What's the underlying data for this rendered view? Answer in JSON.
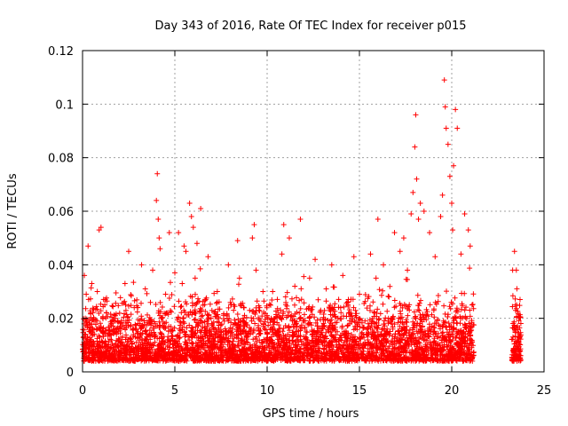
{
  "chart_data": {
    "type": "scatter",
    "title": "Day 343 of 2016, Rate Of TEC Index for receiver p015",
    "xlabel": "GPS time / hours",
    "ylabel": "ROTI / TECUs",
    "xlim": [
      0,
      25
    ],
    "ylim": [
      0,
      0.12
    ],
    "x_ticks": [
      "0",
      "5",
      "10",
      "15",
      "20",
      "25"
    ],
    "y_ticks": [
      "0",
      "0.02",
      "0.04",
      "0.06",
      "0.08",
      "0.1",
      "0.12"
    ],
    "grid": true,
    "marker": "plus",
    "color": "#ff0000",
    "series": [
      {
        "x": [
          0.05,
          0.1,
          0.15,
          0.2,
          0.3,
          0.4,
          0.5,
          0.6,
          0.8,
          0.9,
          1.0,
          1.1,
          1.3,
          1.5,
          1.7,
          2.0,
          2.3,
          2.5,
          2.6,
          2.8,
          3.0,
          3.2,
          3.4,
          3.6,
          3.8,
          4.0,
          4.05,
          4.1,
          4.15,
          4.2,
          4.3,
          4.5,
          4.7,
          5.0,
          5.2,
          5.4,
          5.5,
          5.6,
          5.8,
          5.9,
          6.0,
          6.1,
          6.2,
          6.4,
          6.5,
          6.8,
          7.0,
          7.3,
          7.6,
          7.9,
          8.2,
          8.4,
          8.5,
          8.7,
          9.0,
          9.2,
          9.3,
          9.4,
          9.6,
          9.8,
          10.0,
          10.3,
          10.6,
          10.8,
          10.9,
          11.0,
          11.2,
          11.5,
          11.8,
          12.0,
          12.3,
          12.6,
          12.9,
          13.2,
          13.5,
          13.8,
          14.1,
          14.4,
          14.7,
          15.0,
          15.3,
          15.6,
          15.9,
          16.0,
          16.3,
          16.6,
          16.9,
          17.2,
          17.4,
          17.6,
          17.8,
          17.9,
          18.0,
          18.05,
          18.1,
          18.2,
          18.3,
          18.5,
          18.8,
          19.1,
          19.4,
          19.5,
          19.6,
          19.65,
          19.7,
          19.8,
          19.9,
          20.0,
          20.05,
          20.1,
          20.2,
          20.3,
          20.5,
          20.7,
          20.9,
          21.0,
          21.1,
          23.3,
          23.4,
          23.45,
          23.5,
          23.6,
          23.7
        ],
        "y": [
          0.013,
          0.036,
          0.02,
          0.029,
          0.047,
          0.015,
          0.033,
          0.011,
          0.03,
          0.053,
          0.054,
          0.016,
          0.022,
          0.014,
          0.019,
          0.012,
          0.033,
          0.045,
          0.017,
          0.024,
          0.015,
          0.04,
          0.031,
          0.018,
          0.038,
          0.064,
          0.074,
          0.057,
          0.05,
          0.046,
          0.02,
          0.029,
          0.052,
          0.037,
          0.052,
          0.033,
          0.047,
          0.045,
          0.063,
          0.058,
          0.054,
          0.035,
          0.048,
          0.061,
          0.021,
          0.043,
          0.018,
          0.03,
          0.011,
          0.04,
          0.025,
          0.049,
          0.035,
          0.02,
          0.014,
          0.05,
          0.055,
          0.038,
          0.024,
          0.017,
          0.021,
          0.03,
          0.014,
          0.044,
          0.055,
          0.028,
          0.05,
          0.032,
          0.057,
          0.019,
          0.035,
          0.042,
          0.023,
          0.031,
          0.04,
          0.015,
          0.036,
          0.027,
          0.043,
          0.029,
          0.019,
          0.044,
          0.035,
          0.057,
          0.04,
          0.028,
          0.052,
          0.045,
          0.05,
          0.038,
          0.059,
          0.067,
          0.084,
          0.096,
          0.072,
          0.057,
          0.063,
          0.06,
          0.052,
          0.043,
          0.058,
          0.066,
          0.109,
          0.099,
          0.091,
          0.085,
          0.073,
          0.063,
          0.053,
          0.077,
          0.098,
          0.091,
          0.044,
          0.059,
          0.053,
          0.047,
          0.025,
          0.038,
          0.045,
          0.025,
          0.038,
          0.013,
          0.027
        ]
      }
    ]
  }
}
